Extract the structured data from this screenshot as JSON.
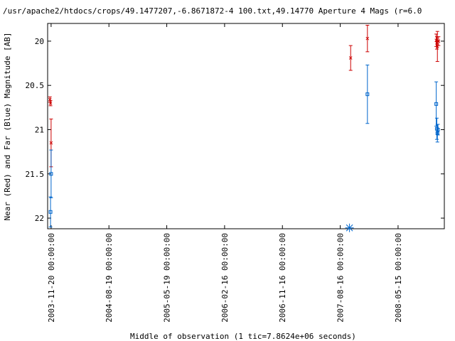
{
  "chart_data": {
    "type": "scatter",
    "title": "/usr/apache2/htdocs/crops/49.1477207,-6.8671872-4 100.txt,49.14770   Aperture 4 Mags (r=6.0",
    "xlabel": "Middle of observation (1 tic=7.8624e+06 seconds)",
    "ylabel": "Near (Red) and Far (Blue) Magnitude [AB]",
    "ylim": [
      22.12,
      19.8
    ],
    "y_reversed": true,
    "y_ticks": [
      {
        "value": 20,
        "label": "20"
      },
      {
        "value": 20.5,
        "label": "20.5"
      },
      {
        "value": 21,
        "label": "21"
      },
      {
        "value": 21.5,
        "label": "21.5"
      },
      {
        "value": 22,
        "label": "22"
      }
    ],
    "x_unit": "tic",
    "xlim": [
      -0.06,
      6.8
    ],
    "x_ticks": [
      {
        "value": 0,
        "label": "2003-11-20 00:00:00"
      },
      {
        "value": 1,
        "label": "2004-08-19 00:00:00"
      },
      {
        "value": 2,
        "label": "2005-05-19 00:00:00"
      },
      {
        "value": 3,
        "label": "2006-02-16 00:00:00"
      },
      {
        "value": 4,
        "label": "2006-11-16 00:00:00"
      },
      {
        "value": 5,
        "label": "2007-08-16 00:00:00"
      },
      {
        "value": 6,
        "label": "2008-05-15 00:00:00"
      }
    ],
    "series": [
      {
        "color": "#cc0000",
        "marker": "x",
        "points": [
          {
            "x": -0.02,
            "y": 20.66,
            "err": 0.03
          },
          {
            "x": -0.01,
            "y": 20.7,
            "err": 0.03
          },
          {
            "x": 0.0,
            "y": 21.15,
            "err": 0.27
          },
          {
            "x": 5.18,
            "y": 20.19,
            "err": 0.14
          },
          {
            "x": 5.47,
            "y": 19.97,
            "err": 0.15
          },
          {
            "x": 6.66,
            "y": 19.99,
            "err": 0.07
          },
          {
            "x": 6.67,
            "y": 20.02,
            "err": 0.07
          },
          {
            "x": 6.68,
            "y": 20.06,
            "err": 0.17
          },
          {
            "x": 6.7,
            "y": 20.0,
            "err": 0.05
          }
        ]
      },
      {
        "color": "#0066cc",
        "marker": "square",
        "points": [
          {
            "x": -0.01,
            "y": 21.93,
            "err": 0.17
          },
          {
            "x": 0.0,
            "y": 21.5,
            "err": 0.27
          },
          {
            "x": 5.47,
            "y": 20.6,
            "err": 0.33
          },
          {
            "x": 6.66,
            "y": 20.71,
            "err": 0.25
          },
          {
            "x": 6.67,
            "y": 20.99,
            "err": 0.12
          },
          {
            "x": 6.68,
            "y": 21.04,
            "err": 0.1
          },
          {
            "x": 6.69,
            "y": 21.0,
            "err": 0.06
          }
        ]
      },
      {
        "color": "#0066cc",
        "marker": "star",
        "points": [
          {
            "x": 5.16,
            "y": 22.11
          }
        ]
      }
    ]
  }
}
